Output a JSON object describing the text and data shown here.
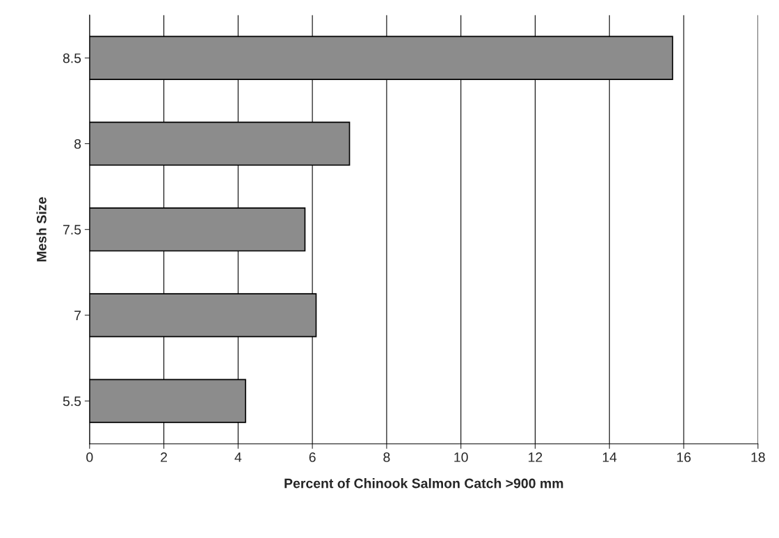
{
  "chart_data": {
    "type": "bar",
    "orientation": "horizontal",
    "xlabel": "Percent of Chinook Salmon Catch >900 mm",
    "ylabel": "Mesh Size",
    "categories": [
      "8.5",
      "8",
      "7.5",
      "7",
      "5.5"
    ],
    "values": [
      15.7,
      7.0,
      5.8,
      6.1,
      4.2
    ],
    "color": "#8c8c8c",
    "xlim": [
      0,
      18
    ],
    "xticks": [
      0,
      2,
      4,
      6,
      8,
      10,
      12,
      14,
      16,
      18
    ],
    "grid": "x"
  }
}
